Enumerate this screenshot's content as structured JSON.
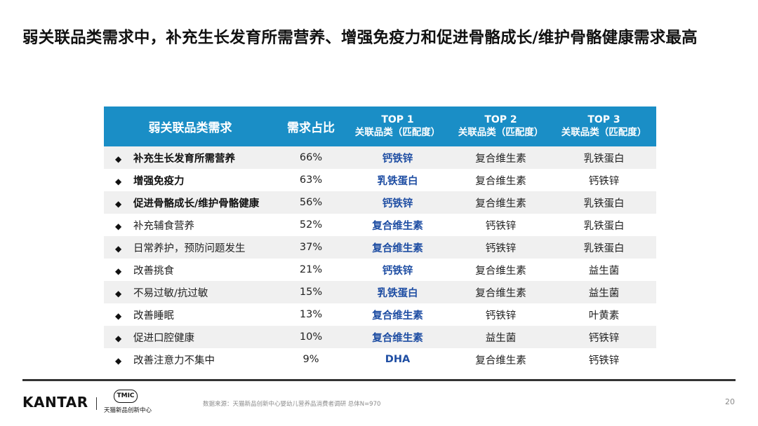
{
  "title": "弱关联品类需求中，补充生长发育所需营养、增强免疫力和促进骨骼成长/维护骨骼健康需求最高",
  "table": {
    "headers": {
      "need": "弱关联品类需求",
      "share": "需求占比",
      "top1_line1": "TOP 1",
      "top1_line2": "关联品类（匹配度）",
      "top2_line1": "TOP 2",
      "top2_line2": "关联品类（匹配度）",
      "top3_line1": "TOP 3",
      "top3_line2": "关联品类（匹配度）"
    },
    "bullet": "◆",
    "rows": [
      {
        "need": "补充生长发育所需营养",
        "share": "66%",
        "top1": "钙铁锌",
        "top2": "复合维生素",
        "top3": "乳铁蛋白"
      },
      {
        "need": "增强免疫力",
        "share": "63%",
        "top1": "乳铁蛋白",
        "top2": "复合维生素",
        "top3": "钙铁锌"
      },
      {
        "need": "促进骨骼成长/维护骨骼健康",
        "share": "56%",
        "top1": "钙铁锌",
        "top2": "复合维生素",
        "top3": "乳铁蛋白"
      },
      {
        "need": "补充辅食营养",
        "share": "52%",
        "top1": "复合维生素",
        "top2": "钙铁锌",
        "top3": "乳铁蛋白"
      },
      {
        "need": "日常养护，预防问题发生",
        "share": "37%",
        "top1": "复合维生素",
        "top2": "钙铁锌",
        "top3": "乳铁蛋白"
      },
      {
        "need": "改善挑食",
        "share": "21%",
        "top1": "钙铁锌",
        "top2": "复合维生素",
        "top3": "益生菌"
      },
      {
        "need": "不易过敏/抗过敏",
        "share": "15%",
        "top1": "乳铁蛋白",
        "top2": "复合维生素",
        "top3": "益生菌"
      },
      {
        "need": "改善睡眠",
        "share": "13%",
        "top1": "复合维生素",
        "top2": "钙铁锌",
        "top3": "叶黄素"
      },
      {
        "need": "促进口腔健康",
        "share": "10%",
        "top1": "复合维生素",
        "top2": "益生菌",
        "top3": "钙铁锌"
      },
      {
        "need": "改善注意力不集中",
        "share": "9%",
        "top1": "DHA",
        "top2": "复合维生素",
        "top3": "钙铁锌"
      }
    ]
  },
  "footer": {
    "brand": "KANTAR",
    "partner_badge": "TMIC",
    "partner_name": "天猫新品创新中心",
    "source": "数据来源：天猫新品创新中心婴幼儿营养品消费者调研 总体N=970",
    "page_number": "20"
  },
  "colors": {
    "header_bg": "#1a8ec6",
    "top1_text": "#1f4ea3",
    "stripe_bg": "#f0f0f0"
  }
}
